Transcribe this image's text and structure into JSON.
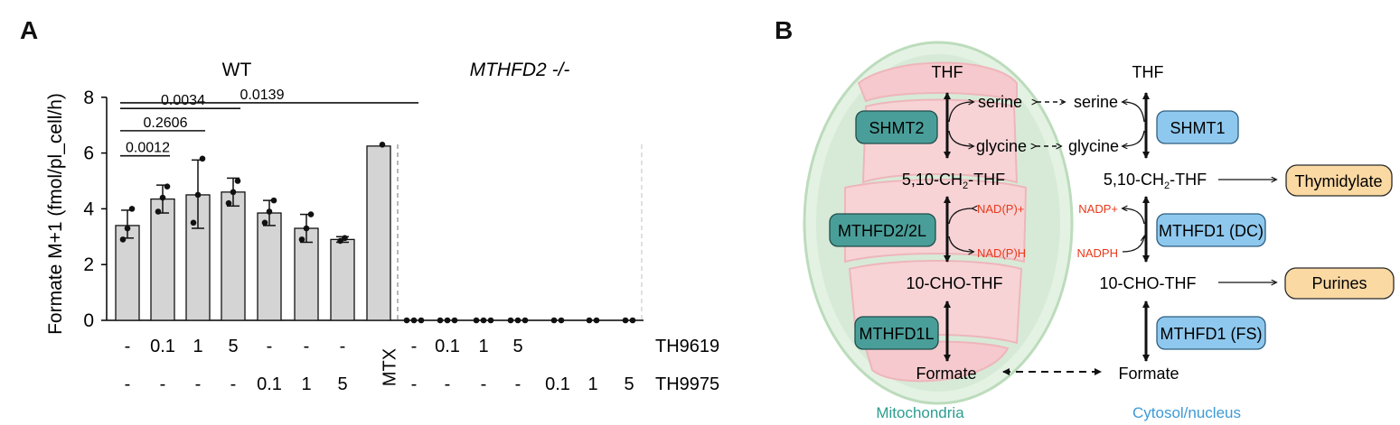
{
  "panels": {
    "a_label": "A",
    "b_label": "B"
  },
  "chart_data": {
    "type": "bar",
    "ylabel": "Formate M+1 (fmol/pl_cell/h)",
    "ylim": [
      0,
      8
    ],
    "yticks": [
      "0",
      "2",
      "4",
      "6",
      "8"
    ],
    "groups": [
      {
        "label": "WT",
        "italic": false
      },
      {
        "label": "MTHFD2 -/-",
        "italic": true
      }
    ],
    "treatment_rows": [
      {
        "name": "TH9619",
        "values": [
          "-",
          "0.1",
          "1",
          "5",
          "-",
          "-",
          "-",
          "",
          "-",
          "0.1",
          "1",
          "5",
          "",
          "",
          ""
        ]
      },
      {
        "name": "TH9975",
        "values": [
          "-",
          "-",
          "-",
          "-",
          "0.1",
          "1",
          "5",
          "",
          "-",
          "-",
          "-",
          "-",
          "0.1",
          "1",
          "5"
        ]
      }
    ],
    "mtx_label": "MTX",
    "bars": [
      {
        "group": "WT",
        "value": 3.4,
        "err": [
          2.95,
          3.95
        ],
        "points": [
          2.9,
          3.3,
          4.0
        ]
      },
      {
        "group": "WT",
        "value": 4.35,
        "err": [
          3.85,
          4.85
        ],
        "points": [
          3.9,
          4.4,
          4.8
        ]
      },
      {
        "group": "WT",
        "value": 4.5,
        "err": [
          3.3,
          5.75
        ],
        "points": [
          3.5,
          4.5,
          5.8
        ]
      },
      {
        "group": "WT",
        "value": 4.6,
        "err": [
          4.1,
          5.1
        ],
        "points": [
          4.2,
          4.6,
          5.0
        ]
      },
      {
        "group": "WT",
        "value": 3.85,
        "err": [
          3.4,
          4.3
        ],
        "points": [
          3.5,
          3.9,
          4.3
        ]
      },
      {
        "group": "WT",
        "value": 3.3,
        "err": [
          2.8,
          3.8
        ],
        "points": [
          2.9,
          3.3,
          3.8
        ]
      },
      {
        "group": "WT",
        "value": 2.9,
        "err": [
          2.8,
          3.0
        ],
        "points": [
          2.85,
          2.95
        ]
      },
      {
        "group": "WT",
        "value": 6.25,
        "err": [
          6.25,
          6.25
        ],
        "points": [
          6.3
        ]
      },
      {
        "group": "MTHFD2 -/-",
        "value": 0,
        "err": [
          0,
          0
        ],
        "points": [
          0,
          0,
          0
        ]
      },
      {
        "group": "MTHFD2 -/-",
        "value": 0,
        "err": [
          0,
          0
        ],
        "points": [
          0,
          0,
          0
        ]
      },
      {
        "group": "MTHFD2 -/-",
        "value": 0,
        "err": [
          0,
          0
        ],
        "points": [
          0,
          0,
          0
        ]
      },
      {
        "group": "MTHFD2 -/-",
        "value": 0,
        "err": [
          0,
          0
        ],
        "points": [
          0,
          0,
          0
        ]
      },
      {
        "group": "MTHFD2 -/-",
        "value": 0,
        "err": [
          0,
          0
        ],
        "points": [
          0,
          0
        ]
      },
      {
        "group": "MTHFD2 -/-",
        "value": 0,
        "err": [
          0,
          0
        ],
        "points": [
          0,
          0
        ]
      },
      {
        "group": "MTHFD2 -/-",
        "value": 0,
        "err": [
          0,
          0
        ],
        "points": [
          0,
          0
        ]
      }
    ],
    "comparisons": [
      {
        "from": 0,
        "to": 1,
        "label": "0.0012"
      },
      {
        "from": 0,
        "to": 2,
        "label": "0.2606"
      },
      {
        "from": 0,
        "to": 3,
        "label": "0.0034"
      },
      {
        "from": 0,
        "to": 8,
        "label": "0.0139"
      }
    ]
  },
  "diagram": {
    "mito_region_label": "Mitochondria",
    "cyto_region_label": "Cytosol/nucleus",
    "mito": {
      "thf": "THF",
      "serine": "serine",
      "glycine": "glycine",
      "ch2thf_prefix": "5,10-CH",
      "ch2thf_sub": "2",
      "ch2thf_suffix": "-THF",
      "nadp_plus": "NAD(P)+",
      "nadph": "NAD(P)H",
      "cho_thf": "10-CHO-THF",
      "formate": "Formate",
      "enzymes": [
        "SHMT2",
        "MTHFD2/2L",
        "MTHFD1L"
      ]
    },
    "cyto": {
      "thf": "THF",
      "serine": "serine",
      "glycine": "glycine",
      "ch2thf_prefix": "5,10-CH",
      "ch2thf_sub": "2",
      "ch2thf_suffix": "-THF",
      "nadp_plus": "NADP+",
      "nadph": "NADPH",
      "cho_thf": "10-CHO-THF",
      "formate": "Formate",
      "enzymes": [
        "SHMT1",
        "MTHFD1 (DC)",
        "MTHFD1 (FS)"
      ]
    },
    "products": [
      "Thymidylate",
      "Purines"
    ],
    "colors": {
      "mito_enzyme_fill": "#4a9e99",
      "cyto_enzyme_fill": "#8fc8ee",
      "product_fill": "#fbd9a3",
      "nadp_text": "#e8391a",
      "mito_label": "#2a9d8f",
      "cyto_label": "#3c9ad6"
    }
  }
}
